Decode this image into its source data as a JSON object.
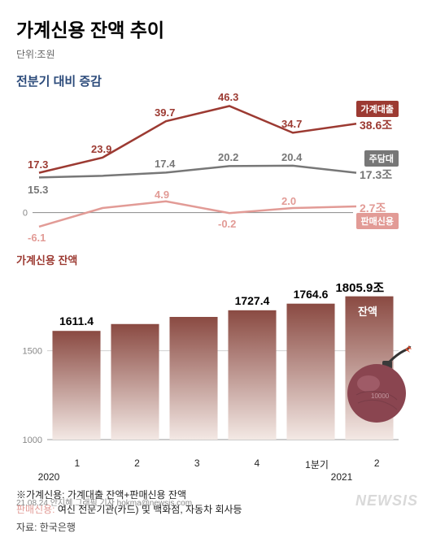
{
  "title": "가계신용 잔액 추이",
  "unit": "단위:조원",
  "subtitle": "전분기 대비 증감",
  "line_chart": {
    "type": "line",
    "categories": [
      "1",
      "2",
      "3",
      "4",
      "1분기",
      "2"
    ],
    "year_labels": [
      "2020",
      "2021"
    ],
    "series": [
      {
        "name": "가계대출",
        "tag": "가계대출",
        "color": "#9c3a32",
        "end_label": "38.6조",
        "values": [
          17.3,
          23.9,
          39.7,
          46.3,
          34.7,
          38.6
        ],
        "point_labels": [
          "17.3",
          "23.9",
          "39.7",
          "46.3",
          "34.7",
          ""
        ]
      },
      {
        "name": "주담대",
        "tag": "주담대",
        "color": "#777777",
        "end_label": "17.3조",
        "values": [
          15.3,
          16.0,
          17.4,
          20.2,
          20.4,
          17.3
        ],
        "point_labels": [
          "15.3",
          "",
          "17.4",
          "20.2",
          "20.4",
          ""
        ]
      },
      {
        "name": "판매신용",
        "tag": "판매신용",
        "color": "#e29b96",
        "end_label": "2.7조",
        "values": [
          -6.1,
          2.0,
          4.9,
          -0.2,
          2.0,
          2.7
        ],
        "point_labels": [
          "-6.1",
          "",
          "4.9",
          "-0.2",
          "2.0",
          ""
        ]
      }
    ],
    "ylim": [
      -10,
      50
    ],
    "zero_line": true,
    "background": "#ffffff",
    "title_fontsize": 15,
    "label_fontsize": 13,
    "line_width": 2.5,
    "marker": "none"
  },
  "bar_chart": {
    "type": "bar",
    "title": "가계신용 잔액",
    "categories": [
      "1",
      "2",
      "3",
      "4",
      "1분기",
      "2"
    ],
    "values": [
      1611.4,
      1650,
      1690,
      1727.4,
      1764.6,
      1805.9
    ],
    "labels": [
      "1611.4",
      "",
      "",
      "1727.4",
      "1764.6",
      ""
    ],
    "end_label": "1805.9조",
    "inner_label": "잔액",
    "ylim": [
      1000,
      1850
    ],
    "yticks": [
      1000,
      1500
    ],
    "bar_color_top": "#8a4a42",
    "bar_color_bottom": "#f3e8e4",
    "grid_color": "#d0d0d0",
    "background": "#ffffff",
    "bar_width": 0.82
  },
  "footnote": {
    "line1_label": "※가계신용:",
    "line1_text": "가계대출 잔액+판매신용 잔액",
    "line2_label": "판매신용:",
    "line2_text": "여신 전문기관(카드) 및 백화점, 자동차 회사등"
  },
  "source_label": "자료:",
  "source_text": "한국은행",
  "credit": "21.08.24 안지혜 그래픽 기자 hokma@newsis.com",
  "watermark": "NEWSIS"
}
